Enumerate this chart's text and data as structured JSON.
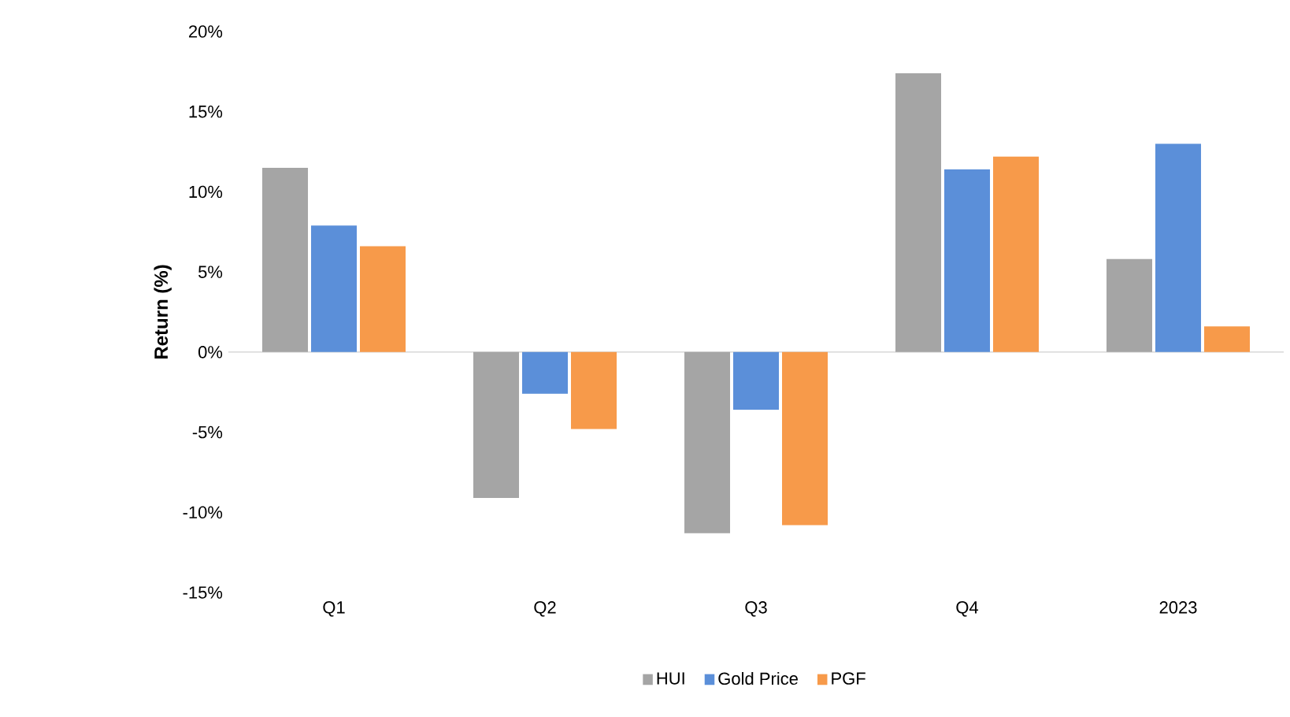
{
  "chart_data": {
    "type": "bar",
    "ylabel": "Return (%)",
    "categories": [
      "Q1",
      "Q2",
      "Q3",
      "Q4",
      "2023"
    ],
    "series": [
      {
        "name": "HUI",
        "color": "#a5a5a5",
        "values": [
          11.5,
          -9.1,
          -11.3,
          17.4,
          5.8
        ]
      },
      {
        "name": "Gold Price",
        "color": "#5b8fd9",
        "values": [
          7.9,
          -2.6,
          -3.6,
          11.4,
          13.0
        ]
      },
      {
        "name": "PGF",
        "color": "#f79a4a",
        "values": [
          6.6,
          -4.8,
          -10.8,
          12.2,
          1.6
        ]
      }
    ],
    "ylim": [
      -15,
      20
    ],
    "yticks": [
      {
        "value": -15,
        "label": "-15%"
      },
      {
        "value": -10,
        "label": "-10%"
      },
      {
        "value": -5,
        "label": "-5%"
      },
      {
        "value": 0,
        "label": "0%"
      },
      {
        "value": 5,
        "label": "5%"
      },
      {
        "value": 10,
        "label": "10%"
      },
      {
        "value": 15,
        "label": "15%"
      },
      {
        "value": 20,
        "label": "20%"
      }
    ],
    "legend": "bottom"
  }
}
